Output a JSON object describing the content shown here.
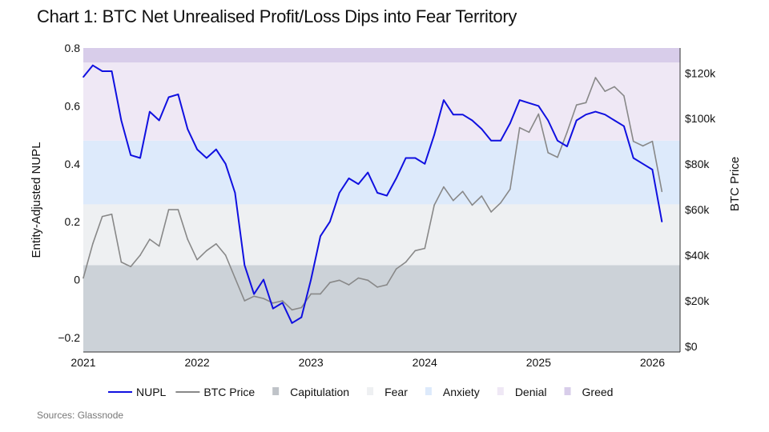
{
  "title": "Chart 1: BTC Net Unrealised Profit/Loss Dips into Fear Territory",
  "source": "Sources: Glassnode",
  "chart_data": {
    "type": "line",
    "title": "Chart 1: BTC Net Unrealised Profit/Loss Dips into Fear Territory",
    "xlabel": "",
    "ylabel": "Entity-Adjusted NUPL",
    "y2label": "BTC Price",
    "xlim": [
      "2021-01",
      "2026-02"
    ],
    "ylim": [
      -0.25,
      0.8
    ],
    "y2lim": [
      -2.5,
      131
    ],
    "x_ticks": [
      "2021",
      "2022",
      "2023",
      "2024",
      "2025",
      "2026"
    ],
    "y_ticks": [
      {
        "v": 0.8,
        "label": "0.8"
      },
      {
        "v": 0.6,
        "label": "0.6"
      },
      {
        "v": 0.4,
        "label": "0.4"
      },
      {
        "v": 0.2,
        "label": "0.2"
      },
      {
        "v": 0,
        "label": "0"
      },
      {
        "v": -0.2,
        "label": "−0.2"
      }
    ],
    "y2_ticks": [
      {
        "v": 120,
        "label": "$120k"
      },
      {
        "v": 100,
        "label": "$100k"
      },
      {
        "v": 80,
        "label": "$80k"
      },
      {
        "v": 60,
        "label": "$60k"
      },
      {
        "v": 40,
        "label": "$40k"
      },
      {
        "v": 20,
        "label": "$20k"
      },
      {
        "v": 0,
        "label": "$0"
      }
    ],
    "grid": false,
    "legend_placement": "bottom",
    "bands": [
      {
        "name": "Capitulation",
        "from": -0.25,
        "to": 0.05,
        "color": "#ccd2d8"
      },
      {
        "name": "Fear",
        "from": 0.05,
        "to": 0.26,
        "color": "#eef0f2"
      },
      {
        "name": "Anxiety",
        "from": 0.26,
        "to": 0.48,
        "color": "#ddeafb"
      },
      {
        "name": "Denial",
        "from": 0.48,
        "to": 0.75,
        "color": "#efe8f5"
      },
      {
        "name": "Greed",
        "from": 0.75,
        "to": 0.8,
        "color": "#d8cdea"
      }
    ],
    "x": [
      "2021-01",
      "2021-02",
      "2021-03",
      "2021-04",
      "2021-05",
      "2021-06",
      "2021-07",
      "2021-08",
      "2021-09",
      "2021-10",
      "2021-11",
      "2021-12",
      "2022-01",
      "2022-02",
      "2022-03",
      "2022-04",
      "2022-05",
      "2022-06",
      "2022-07",
      "2022-08",
      "2022-09",
      "2022-10",
      "2022-11",
      "2022-12",
      "2023-01",
      "2023-02",
      "2023-03",
      "2023-04",
      "2023-05",
      "2023-06",
      "2023-07",
      "2023-08",
      "2023-09",
      "2023-10",
      "2023-11",
      "2023-12",
      "2024-01",
      "2024-02",
      "2024-03",
      "2024-04",
      "2024-05",
      "2024-06",
      "2024-07",
      "2024-08",
      "2024-09",
      "2024-10",
      "2024-11",
      "2024-12",
      "2025-01",
      "2025-02",
      "2025-03",
      "2025-04",
      "2025-05",
      "2025-06",
      "2025-07",
      "2025-08",
      "2025-09",
      "2025-10",
      "2025-11",
      "2025-12",
      "2026-01",
      "2026-02"
    ],
    "series": [
      {
        "name": "NUPL",
        "axis": "left",
        "color": "#1010e0",
        "values": [
          0.7,
          0.74,
          0.72,
          0.72,
          0.55,
          0.43,
          0.42,
          0.58,
          0.55,
          0.63,
          0.64,
          0.52,
          0.45,
          0.42,
          0.45,
          0.4,
          0.3,
          0.05,
          -0.05,
          0.0,
          -0.1,
          -0.08,
          -0.15,
          -0.13,
          0.0,
          0.15,
          0.2,
          0.3,
          0.35,
          0.33,
          0.37,
          0.3,
          0.29,
          0.35,
          0.42,
          0.42,
          0.4,
          0.5,
          0.62,
          0.57,
          0.57,
          0.55,
          0.52,
          0.48,
          0.48,
          0.54,
          0.62,
          0.61,
          0.6,
          0.55,
          0.48,
          0.46,
          0.55,
          0.57,
          0.58,
          0.57,
          0.55,
          0.53,
          0.42,
          0.4,
          0.38,
          0.2
        ]
      },
      {
        "name": "BTC Price",
        "axis": "right",
        "unit": "$k",
        "color": "#888888",
        "values": [
          30,
          45,
          57,
          58,
          37,
          35,
          40,
          47,
          44,
          60,
          60,
          47,
          38,
          42,
          45,
          40,
          30,
          20,
          22,
          21,
          19,
          20,
          16,
          17,
          23,
          23,
          28,
          29,
          27,
          30,
          29,
          26,
          27,
          34,
          37,
          42,
          43,
          62,
          70,
          64,
          68,
          62,
          66,
          59,
          63,
          69,
          96,
          94,
          102,
          85,
          83,
          94,
          106,
          107,
          118,
          112,
          114,
          110,
          90,
          88,
          90,
          68
        ]
      }
    ]
  }
}
